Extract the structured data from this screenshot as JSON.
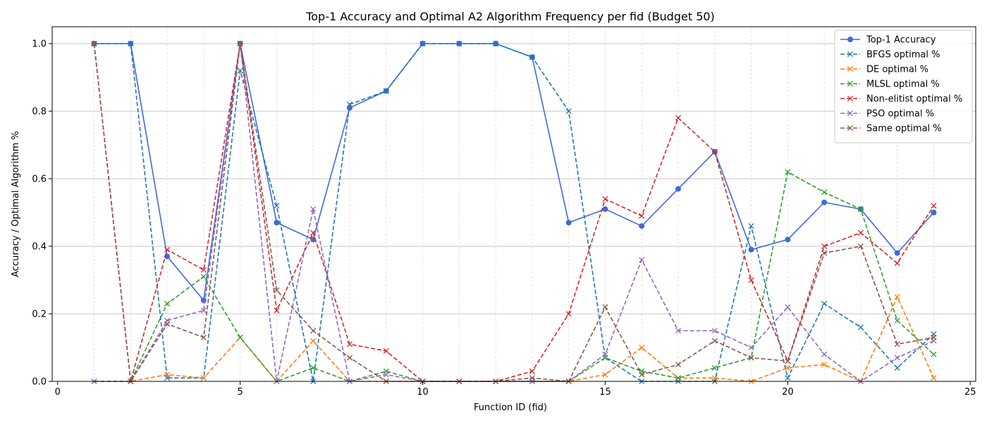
{
  "chart_data": {
    "type": "line",
    "title": "Top-1 Accuracy and Optimal A2 Algorithm Frequency per fid (Budget 50)",
    "xlabel": "Function ID (fid)",
    "ylabel": "Accuracy / Optimal Algorithm %",
    "xlim": [
      -0.15,
      25.15
    ],
    "ylim": [
      0,
      1.05
    ],
    "xticks": [
      0,
      5,
      10,
      15,
      20,
      25
    ],
    "yticks": [
      0.0,
      0.2,
      0.4,
      0.6,
      0.8,
      1.0
    ],
    "ytick_labels": [
      "0.0",
      "0.2",
      "0.4",
      "0.6",
      "0.8",
      "1.0"
    ],
    "grid": "major y solid, minor x dashed",
    "legend_position": "upper right",
    "x": [
      1,
      2,
      3,
      4,
      5,
      6,
      7,
      8,
      9,
      10,
      11,
      12,
      13,
      14,
      15,
      16,
      17,
      18,
      19,
      20,
      21,
      22,
      23,
      24
    ],
    "series": [
      {
        "name": "Top-1 Accuracy",
        "color": "#3f6ad8",
        "style": "solid",
        "marker": "circle",
        "values": [
          1.0,
          1.0,
          0.37,
          0.24,
          1.0,
          0.47,
          0.42,
          0.81,
          0.86,
          1.0,
          1.0,
          1.0,
          0.96,
          0.47,
          0.51,
          0.46,
          0.57,
          0.68,
          0.39,
          0.42,
          0.53,
          0.51,
          0.38,
          0.5
        ]
      },
      {
        "name": "BFGS optimal %",
        "color": "#1f77b4",
        "style": "dashed",
        "marker": "x",
        "values": [
          1.0,
          1.0,
          0.01,
          0.01,
          0.92,
          0.52,
          0.0,
          0.82,
          0.86,
          1.0,
          1.0,
          1.0,
          0.96,
          0.8,
          0.07,
          0.0,
          0.0,
          0.0,
          0.46,
          0.01,
          0.23,
          0.16,
          0.04,
          0.14
        ]
      },
      {
        "name": "DE optimal %",
        "color": "#ff7f0e",
        "style": "dashed",
        "marker": "x",
        "values": [
          0.0,
          0.0,
          0.02,
          0.01,
          0.13,
          0.0,
          0.12,
          0.0,
          0.0,
          0.0,
          0.0,
          0.0,
          0.0,
          0.0,
          0.02,
          0.1,
          0.01,
          0.01,
          0.0,
          0.04,
          0.05,
          0.0,
          0.25,
          0.01
        ]
      },
      {
        "name": "MLSL optimal %",
        "color": "#2ca02c",
        "style": "dashed",
        "marker": "x",
        "values": [
          0.0,
          0.0,
          0.23,
          0.31,
          0.13,
          0.0,
          0.04,
          0.0,
          0.03,
          0.0,
          0.0,
          0.0,
          0.0,
          0.0,
          0.07,
          0.03,
          0.01,
          0.04,
          0.07,
          0.62,
          0.56,
          0.51,
          0.18,
          0.08
        ]
      },
      {
        "name": "Non-elitist optimal %",
        "color": "#d62728",
        "style": "dashed",
        "marker": "x",
        "values": [
          1.0,
          0.0,
          0.39,
          0.33,
          1.0,
          0.21,
          0.44,
          0.11,
          0.09,
          0.0,
          0.0,
          0.0,
          0.03,
          0.2,
          0.54,
          0.49,
          0.78,
          0.68,
          0.3,
          0.06,
          0.4,
          0.44,
          0.35,
          0.52
        ]
      },
      {
        "name": "PSO optimal %",
        "color": "#9467bd",
        "style": "dashed",
        "marker": "x",
        "values": [
          0.0,
          0.0,
          0.18,
          0.21,
          1.0,
          0.0,
          0.51,
          0.0,
          0.02,
          0.0,
          0.0,
          0.0,
          0.0,
          0.0,
          0.08,
          0.36,
          0.15,
          0.15,
          0.1,
          0.22,
          0.08,
          0.0,
          0.07,
          0.12
        ]
      },
      {
        "name": "Same optimal %",
        "color": "#8c564b",
        "style": "dashed",
        "marker": "x",
        "values": [
          1.0,
          0.0,
          0.17,
          0.13,
          1.0,
          0.27,
          0.15,
          0.07,
          0.0,
          0.0,
          0.0,
          0.0,
          0.01,
          0.0,
          0.22,
          0.02,
          0.05,
          0.12,
          0.07,
          0.06,
          0.38,
          0.4,
          0.11,
          0.13
        ]
      }
    ]
  }
}
